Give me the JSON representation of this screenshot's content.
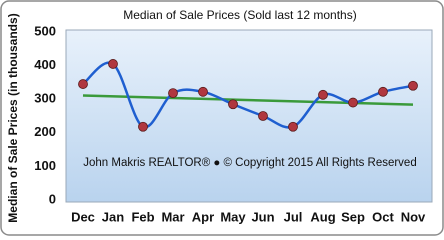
{
  "chart_data": {
    "type": "line",
    "title": "Median of Sale Prices (Sold last 12 months)",
    "y_label": "Median of Sale Prices (in thousands)",
    "annotation": "John Makris REALTOR®  ●  © Copyright 2015 All Rights Reserved",
    "categories": [
      "Dec",
      "Jan",
      "Feb",
      "Mar",
      "Apr",
      "May",
      "Jun",
      "Jul",
      "Aug",
      "Sep",
      "Oct",
      "Nov"
    ],
    "series": [
      {
        "color": "#1f5fd0",
        "marker_color": "#b0373f",
        "values": [
          345,
          405,
          218,
          318,
          322,
          285,
          250,
          218,
          313,
          290,
          322,
          340
        ]
      }
    ],
    "trendline": {
      "color": "#3a9a3a",
      "values": [
        311,
        284
      ]
    },
    "ylim": [
      0,
      500
    ],
    "yticks": [
      0,
      100,
      200,
      300,
      400,
      500
    ],
    "grid": false
  }
}
